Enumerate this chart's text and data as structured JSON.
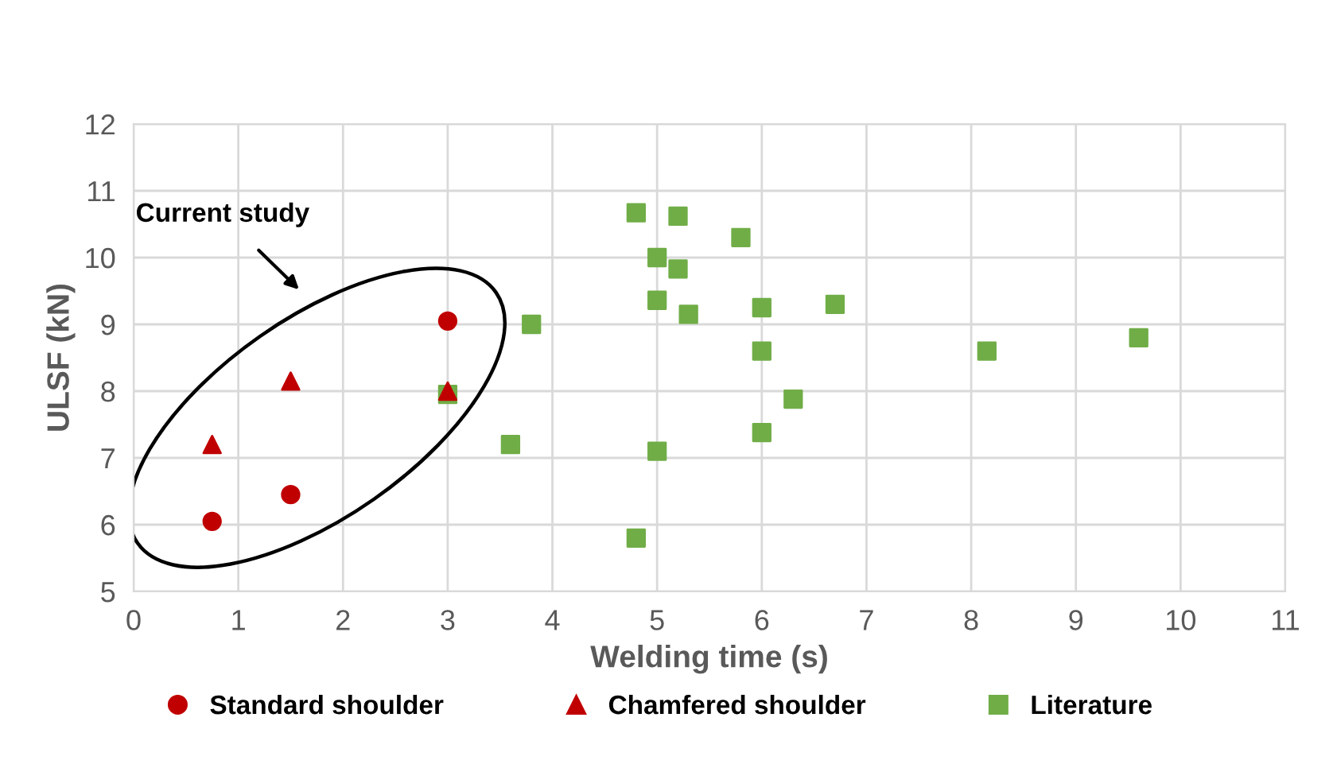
{
  "chart_data": {
    "type": "scatter",
    "xlabel": "Welding time (s)",
    "ylabel": "ULSF (kN)",
    "xlim": [
      0,
      11
    ],
    "xticks": [
      0,
      1,
      2,
      3,
      4,
      5,
      6,
      7,
      8,
      9,
      10,
      11
    ],
    "ylim": [
      5,
      12
    ],
    "yticks": [
      5,
      6,
      7,
      8,
      9,
      10,
      11,
      12
    ],
    "grid": true,
    "legend": "bottom",
    "annotations": [
      "Current study"
    ],
    "series": [
      {
        "name": "Standard shoulder",
        "color": "#c00000",
        "marker": "circle",
        "x": [
          0.75,
          1.5,
          3
        ],
        "values": [
          6.05,
          6.45,
          9.05
        ]
      },
      {
        "name": "Chamfered shoulder",
        "color": "#c00000",
        "marker": "triangle",
        "x": [
          0.75,
          1.5,
          3
        ],
        "values": [
          7.2,
          8.15,
          8.0
        ]
      },
      {
        "name": "Literature",
        "color": "#70ad47",
        "marker": "square",
        "x": [
          4.8,
          5.2,
          5.8,
          5.0,
          5.2,
          5.0,
          5.3,
          6.0,
          6.7,
          3.8,
          6.0,
          8.15,
          9.6,
          6.3,
          3.0,
          6.0,
          3.6,
          5.0,
          4.8
        ],
        "values": [
          10.67,
          10.62,
          10.3,
          10.0,
          9.83,
          9.36,
          9.15,
          9.25,
          9.3,
          9.0,
          8.6,
          8.6,
          8.8,
          7.88,
          7.95,
          7.38,
          7.2,
          7.1,
          5.8
        ]
      }
    ]
  }
}
